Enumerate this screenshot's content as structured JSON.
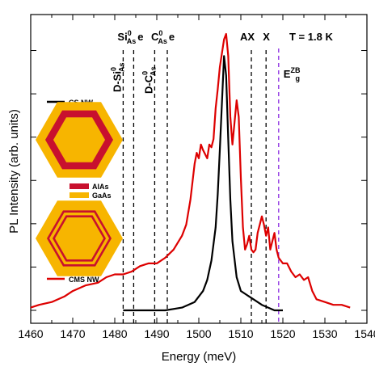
{
  "colors": {
    "cs_series": "#000000",
    "cms_series": "#dd0000",
    "band_gap_line": "#8a2be2",
    "algaas": "#c8102e",
    "gaas": "#f7b500"
  },
  "chart_data": {
    "type": "line",
    "xlabel": "Energy (meV)",
    "ylabel": "PL Intensity (arb. units)",
    "xlim": [
      1460,
      1540
    ],
    "ylim": [
      0,
      1
    ],
    "x_ticks": [
      1460,
      1470,
      1480,
      1490,
      1500,
      1510,
      1520,
      1530,
      1540
    ],
    "y_tick_labels_shown": false,
    "grid": false,
    "temperature_label": "T = 1.8 K",
    "series": [
      {
        "name": "CS NW",
        "color": "#000000",
        "x": [
          1482,
          1492,
          1496,
          1499,
          1501,
          1502,
          1503,
          1504,
          1504.5,
          1505,
          1505.5,
          1506,
          1506.5,
          1507,
          1507.5,
          1508,
          1509,
          1510,
          1511,
          1512,
          1513,
          1515,
          1518,
          1520
        ],
        "y": [
          0.0,
          0.0,
          0.01,
          0.03,
          0.07,
          0.11,
          0.18,
          0.3,
          0.42,
          0.58,
          0.75,
          0.92,
          0.85,
          0.62,
          0.4,
          0.25,
          0.12,
          0.07,
          0.06,
          0.05,
          0.04,
          0.02,
          0.0,
          0.0
        ]
      },
      {
        "name": "CMS NW",
        "color": "#dd0000",
        "x": [
          1460,
          1462,
          1465,
          1468,
          1470,
          1473,
          1476,
          1478,
          1480,
          1482,
          1484,
          1486,
          1488,
          1490,
          1492,
          1494,
          1496,
          1497,
          1498,
          1499,
          1499.5,
          1500,
          1500.5,
          1501,
          1502,
          1502.5,
          1503,
          1503.5,
          1504,
          1504.5,
          1505,
          1505.5,
          1506,
          1506.5,
          1507,
          1507.5,
          1508,
          1508.5,
          1509,
          1509.5,
          1510,
          1510.5,
          1511,
          1511.5,
          1512,
          1512.5,
          1513,
          1513.5,
          1514,
          1514.5,
          1515,
          1515.5,
          1516,
          1516.5,
          1517,
          1517.5,
          1518,
          1518.5,
          1519,
          1520,
          1521,
          1522,
          1523,
          1524,
          1525,
          1526,
          1527,
          1528,
          1530,
          1532,
          1534,
          1536
        ],
        "y": [
          0.01,
          0.02,
          0.03,
          0.05,
          0.07,
          0.09,
          0.1,
          0.12,
          0.13,
          0.13,
          0.14,
          0.16,
          0.17,
          0.17,
          0.19,
          0.22,
          0.27,
          0.31,
          0.4,
          0.53,
          0.57,
          0.55,
          0.6,
          0.58,
          0.55,
          0.6,
          0.59,
          0.62,
          0.73,
          0.8,
          0.88,
          0.93,
          0.98,
          1.0,
          0.92,
          0.7,
          0.6,
          0.68,
          0.76,
          0.7,
          0.48,
          0.3,
          0.22,
          0.24,
          0.27,
          0.22,
          0.21,
          0.22,
          0.28,
          0.31,
          0.34,
          0.31,
          0.27,
          0.3,
          0.22,
          0.25,
          0.28,
          0.22,
          0.19,
          0.17,
          0.17,
          0.14,
          0.12,
          0.13,
          0.11,
          0.12,
          0.07,
          0.04,
          0.03,
          0.02,
          0.02,
          0.01
        ]
      }
    ],
    "annotations": [
      {
        "id": "d_si",
        "x": 1482.0,
        "base": "D-Si",
        "sup": "0",
        "sub": "As",
        "tail": "",
        "style": "dashed-black",
        "orientation": "vertical"
      },
      {
        "id": "si_e",
        "x": 1484.5,
        "base": "Si",
        "sup": "0",
        "sub": "As",
        "tail": "e",
        "style": "dashed-black",
        "orientation": "horizontal"
      },
      {
        "id": "d_c",
        "x": 1489.5,
        "base": "D-C",
        "sup": "0",
        "sub": "As",
        "tail": "",
        "style": "dashed-black",
        "orientation": "vertical"
      },
      {
        "id": "c_e",
        "x": 1492.5,
        "base": "C",
        "sup": "0",
        "sub": "As",
        "tail": "e",
        "style": "dashed-black",
        "orientation": "horizontal"
      },
      {
        "id": "ax",
        "x": 1512.5,
        "base": "AX",
        "sup": "",
        "sub": "",
        "tail": "",
        "style": "dashed-black",
        "orientation": "horizontal"
      },
      {
        "id": "x",
        "x": 1516.0,
        "base": "X",
        "sup": "",
        "sub": "",
        "tail": "",
        "style": "dashed-black",
        "orientation": "horizontal"
      },
      {
        "id": "eg",
        "x": 1519.0,
        "base": "E",
        "sup": "ZB",
        "sub": "g",
        "tail": "",
        "style": "dashed-violet",
        "orientation": "horizontal"
      }
    ],
    "legend_labels": {
      "cs": "CS NW",
      "cms": "CMS NW",
      "algaas": "AlAs",
      "gaas": "GaAs"
    }
  }
}
